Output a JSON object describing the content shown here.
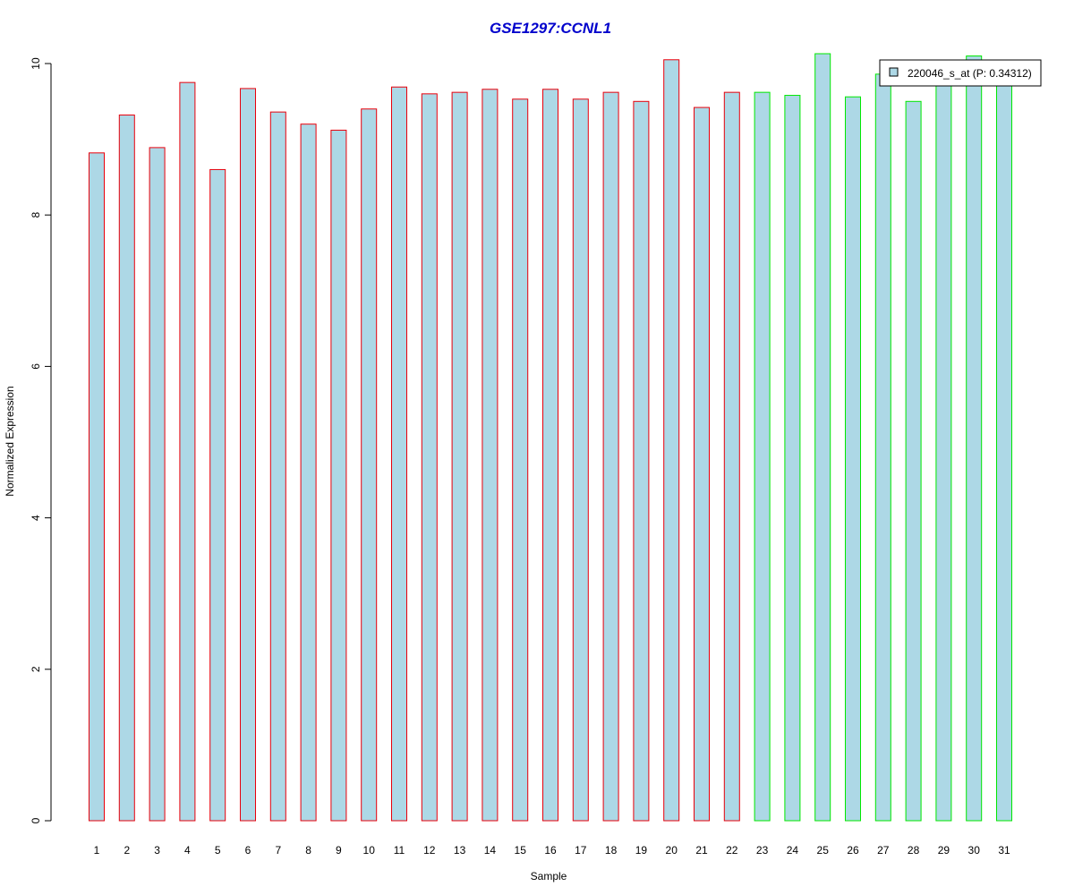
{
  "chart_data": {
    "type": "bar",
    "title": "GSE1297:CCNL1",
    "xlabel": "Sample",
    "ylabel": "Normalized Expression",
    "categories": [
      "1",
      "2",
      "3",
      "4",
      "5",
      "6",
      "7",
      "8",
      "9",
      "10",
      "11",
      "12",
      "13",
      "14",
      "15",
      "16",
      "17",
      "18",
      "19",
      "20",
      "21",
      "22",
      "23",
      "24",
      "25",
      "26",
      "27",
      "28",
      "29",
      "30",
      "31"
    ],
    "series": [
      {
        "name": "220046_s_at (P: 0.34312)",
        "values": [
          8.82,
          9.32,
          8.89,
          9.75,
          8.6,
          9.67,
          9.36,
          9.2,
          9.12,
          9.4,
          9.69,
          9.6,
          9.62,
          9.66,
          9.53,
          9.66,
          9.53,
          9.62,
          9.5,
          10.05,
          9.42,
          9.62,
          9.62,
          9.58,
          10.13,
          9.56,
          9.86,
          9.5,
          9.75,
          10.1,
          9.78
        ]
      }
    ],
    "group_sizes": [
      22,
      9
    ],
    "group_colors": [
      "#e8000b",
      "#00e800"
    ],
    "bar_fill": "#add8e6",
    "title_color": "#0000cc",
    "ylim": [
      0,
      10
    ],
    "yticks": [
      0,
      2,
      4,
      6,
      8,
      10
    ],
    "grid": false,
    "legend_position": "top-right"
  }
}
